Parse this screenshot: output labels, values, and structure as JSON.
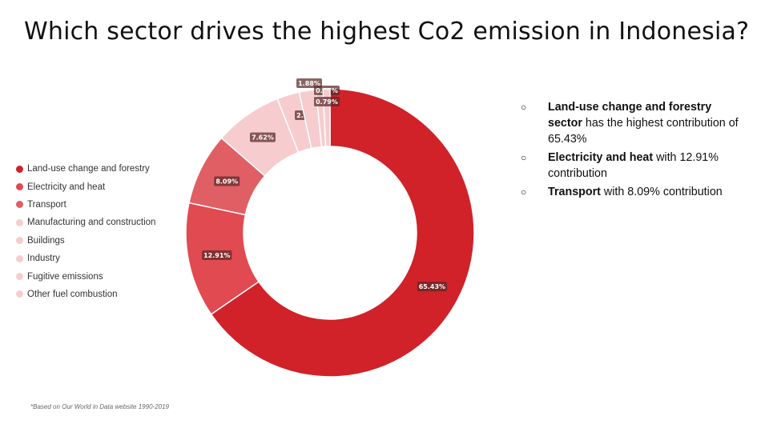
{
  "title": "Which sector drives the highest Co2 emission in Indonesia?",
  "chart_data": {
    "type": "pie",
    "donut": true,
    "title": "",
    "categories": [
      "Land-use change and forestry",
      "Electricity and heat",
      "Transport",
      "Manufacturing and construction",
      "Buildings",
      "Industry",
      "Fugitive emissions",
      "Other fuel combustion"
    ],
    "values": [
      65.43,
      12.91,
      8.09,
      7.62,
      2.51,
      1.88,
      0.77,
      0.79
    ],
    "value_labels": [
      "65.43%",
      "12.91%",
      "8.09%",
      "7.62%",
      "2.51%",
      "1.88%",
      "0.77%",
      "0.79%"
    ],
    "colors": [
      "#d02228",
      "#e04a50",
      "#e05f64",
      "#f7cccf",
      "#f7cccf",
      "#f7cccf",
      "#f7cccf",
      "#f7cccf"
    ],
    "legend_position": "left"
  },
  "bullets": [
    {
      "bold": "Land-use change and forestry sector",
      "text": " has the highest contribution of 65.43%"
    },
    {
      "bold": "Electricity and heat",
      "text": " with 12.91% contribution"
    },
    {
      "bold": "Transport",
      "text": " with 8.09% contribution"
    }
  ],
  "bullet_marker": "○",
  "footnote": "*Based on Our World in Data website 1990-2019"
}
